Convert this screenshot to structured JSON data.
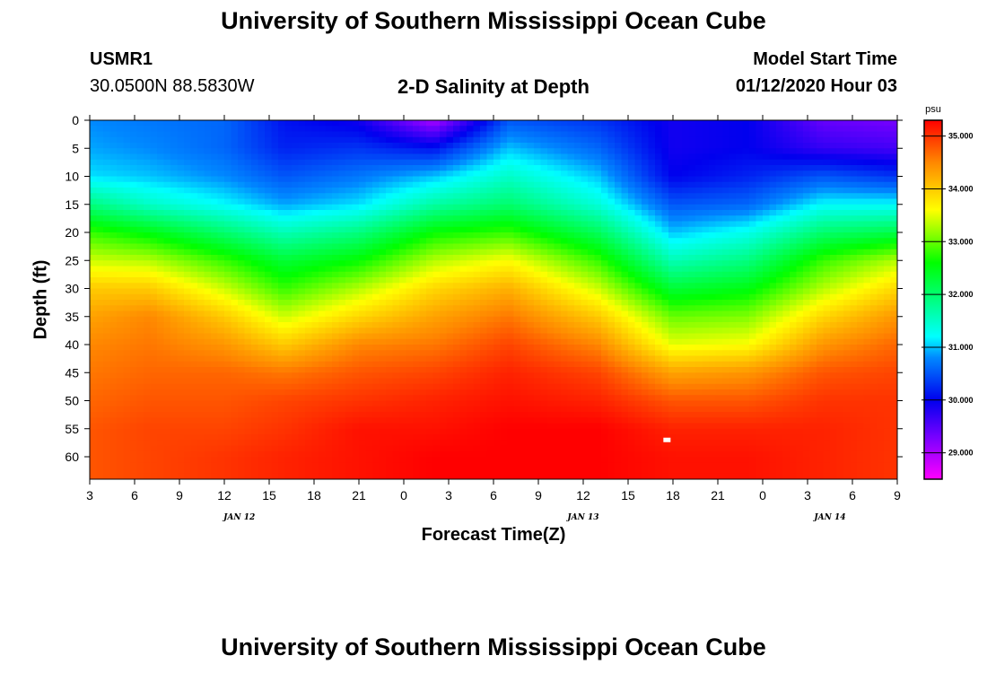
{
  "header": {
    "title": "University of Southern Mississippi Ocean Cube",
    "station_id": "USMR1",
    "station_coords": "30.0500N 88.5830W",
    "subtitle": "2-D Salinity at Depth",
    "model_start_label": "Model Start Time",
    "model_start_value": "01/12/2020 Hour 03"
  },
  "footer": {
    "title": "University of Southern Mississippi Ocean Cube"
  },
  "chart_data": {
    "type": "heatmap",
    "title": "2-D Salinity at Depth",
    "xlabel": "Forecast Time(Z)",
    "ylabel": "Depth (ft)",
    "x_start_hour": 3,
    "x_end_hour": 57,
    "x_tick_labels": [
      "3",
      "6",
      "9",
      "12",
      "15",
      "18",
      "21",
      "0",
      "3",
      "6",
      "9",
      "12",
      "15",
      "18",
      "21",
      "0",
      "3",
      "6",
      "9"
    ],
    "date_labels": [
      {
        "text": "JAN 12",
        "hour": 13
      },
      {
        "text": "JAN 13",
        "hour": 36
      },
      {
        "text": "JAN 14",
        "hour": 52.5
      }
    ],
    "y_range": [
      0,
      64
    ],
    "y_tick_labels": [
      "0",
      "5",
      "10",
      "15",
      "20",
      "25",
      "30",
      "35",
      "40",
      "45",
      "50",
      "55",
      "60"
    ],
    "colorbar": {
      "unit": "psu",
      "range": [
        28.5,
        35.3
      ],
      "tick_values": [
        "35.000",
        "34.000",
        "33.000",
        "32.000",
        "31.000",
        "30.000",
        "29.000"
      ],
      "color_stops": [
        {
          "value": 28.5,
          "color": "#ff00ff"
        },
        {
          "value": 29.3,
          "color": "#7700ff"
        },
        {
          "value": 30.0,
          "color": "#0000ee"
        },
        {
          "value": 30.8,
          "color": "#0088ff"
        },
        {
          "value": 31.2,
          "color": "#00ffff"
        },
        {
          "value": 32.6,
          "color": "#00ff00"
        },
        {
          "value": 33.6,
          "color": "#ffff00"
        },
        {
          "value": 34.5,
          "color": "#ff8800"
        },
        {
          "value": 35.3,
          "color": "#ff0000"
        }
      ]
    },
    "field": {
      "description": "salinity (psu) vs forecast hour (rows) and depth in ft (columns)",
      "depths_ft": [
        0,
        5,
        10,
        15,
        20,
        25,
        30,
        35,
        40,
        45,
        50,
        55,
        60,
        64
      ],
      "hours": [
        3,
        7,
        12,
        16,
        21,
        26,
        31,
        37,
        42,
        47,
        52,
        57
      ],
      "salinity": [
        [
          30.8,
          30.9,
          31.1,
          31.9,
          32.8,
          33.4,
          34.0,
          34.3,
          34.5,
          34.6,
          34.7,
          34.8,
          34.8,
          34.8
        ],
        [
          30.7,
          30.8,
          31.0,
          31.5,
          32.5,
          33.3,
          34.0,
          34.5,
          34.6,
          34.7,
          34.8,
          34.9,
          34.9,
          34.9
        ],
        [
          30.6,
          30.6,
          30.8,
          31.2,
          32.0,
          32.8,
          33.4,
          34.0,
          34.4,
          34.7,
          34.8,
          34.9,
          35.0,
          35.0
        ],
        [
          30.1,
          30.2,
          30.5,
          30.9,
          31.6,
          32.3,
          32.8,
          33.4,
          34.0,
          34.6,
          34.9,
          35.0,
          35.1,
          35.1
        ],
        [
          29.9,
          30.3,
          30.7,
          31.1,
          31.9,
          32.6,
          33.3,
          33.9,
          34.5,
          34.8,
          35.0,
          35.2,
          35.2,
          35.2
        ],
        [
          29.0,
          30.1,
          31.0,
          31.7,
          32.6,
          33.3,
          33.9,
          34.3,
          34.6,
          34.9,
          35.1,
          35.2,
          35.3,
          35.3
        ],
        [
          30.5,
          31.0,
          31.5,
          32.0,
          32.8,
          33.6,
          34.2,
          34.6,
          34.9,
          35.1,
          35.2,
          35.3,
          35.3,
          35.3
        ],
        [
          30.3,
          30.6,
          31.0,
          31.4,
          32.1,
          32.8,
          33.4,
          34.0,
          34.5,
          34.9,
          35.1,
          35.3,
          35.3,
          35.3
        ],
        [
          29.9,
          29.9,
          30.0,
          30.5,
          31.0,
          31.6,
          32.3,
          33.0,
          33.5,
          34.3,
          34.8,
          35.1,
          35.2,
          35.2
        ],
        [
          30.0,
          30.0,
          30.2,
          30.6,
          31.3,
          31.9,
          32.5,
          33.1,
          33.6,
          34.4,
          34.8,
          35.1,
          35.2,
          35.2
        ],
        [
          29.4,
          29.7,
          30.5,
          31.2,
          32.0,
          32.8,
          33.3,
          33.9,
          34.4,
          34.8,
          35.0,
          35.1,
          35.1,
          35.1
        ],
        [
          29.3,
          29.6,
          30.3,
          31.2,
          32.2,
          33.3,
          33.9,
          34.4,
          34.7,
          34.9,
          35.0,
          35.0,
          35.0,
          35.0
        ]
      ]
    },
    "marker": {
      "hour": 41.6,
      "depth_ft": 57
    }
  }
}
